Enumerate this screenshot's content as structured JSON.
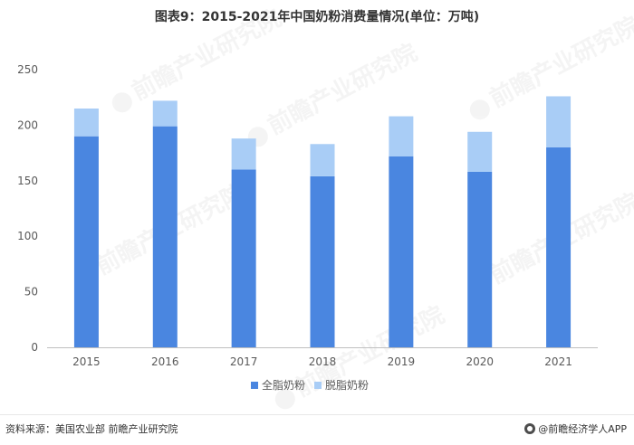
{
  "title": "图表9：2015-2021年中国奶粉消费量情况(单位：万吨)",
  "source": "资料来源：美国农业部 前瞻产业研究院",
  "brand": "@前瞻经济学人APP",
  "watermark": "前瞻产业研究院",
  "colors": {
    "full_fat": "#4a86e0",
    "skim": "#a9cdf6",
    "axis": "#bfbfbf",
    "tick_text": "#595959"
  },
  "chart_data": {
    "type": "bar",
    "stacked": true,
    "categories": [
      "2015",
      "2016",
      "2017",
      "2018",
      "2019",
      "2020",
      "2021"
    ],
    "series": [
      {
        "name": "全脂奶粉",
        "values": [
          190,
          199,
          160,
          154,
          172,
          158,
          180
        ]
      },
      {
        "name": "脱脂奶粉",
        "values": [
          25,
          23,
          28,
          29,
          36,
          36,
          46
        ]
      }
    ],
    "ylim": [
      0,
      250
    ],
    "yticks": [
      0,
      50,
      100,
      150,
      200,
      250
    ],
    "grid": false,
    "legend": "bottom-center"
  }
}
